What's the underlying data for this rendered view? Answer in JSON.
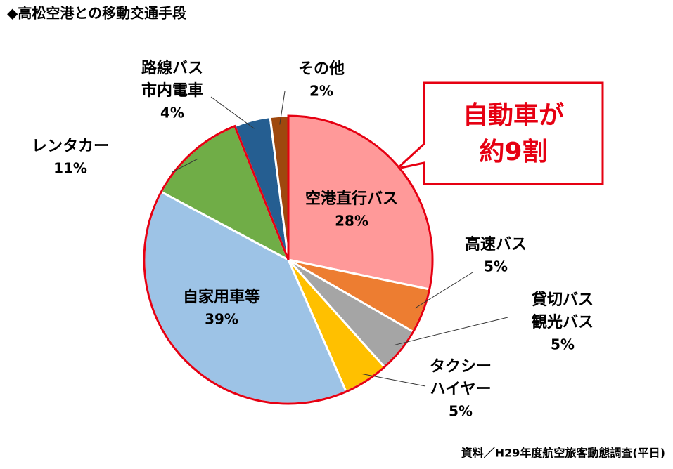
{
  "chart_data": {
    "type": "pie",
    "title": "◆高松空港との移動交通手段",
    "source": "資料／H29年度航空旅客動態調査(平日)",
    "annotation": [
      "自動車が",
      "約9割"
    ],
    "categories": [
      [
        "空港直行バス"
      ],
      [
        "高速バス"
      ],
      [
        "貸切バス",
        "観光バス"
      ],
      [
        "タクシー",
        "ハイヤー"
      ],
      [
        "自家用車等"
      ],
      [
        "レンタカー"
      ],
      [
        "路線バス",
        "市内電車"
      ],
      [
        "その他"
      ]
    ],
    "values": [
      28,
      5,
      5,
      5,
      39,
      11,
      4,
      2
    ],
    "value_labels": [
      "28%",
      "5%",
      "5%",
      "5%",
      "39%",
      "11%",
      "4%",
      "2%"
    ],
    "colors": [
      "#ff9999",
      "#ed7d31",
      "#a5a5a5",
      "#ffc000",
      "#9dc3e6",
      "#70ad47",
      "#255e91",
      "#9e480e"
    ]
  }
}
